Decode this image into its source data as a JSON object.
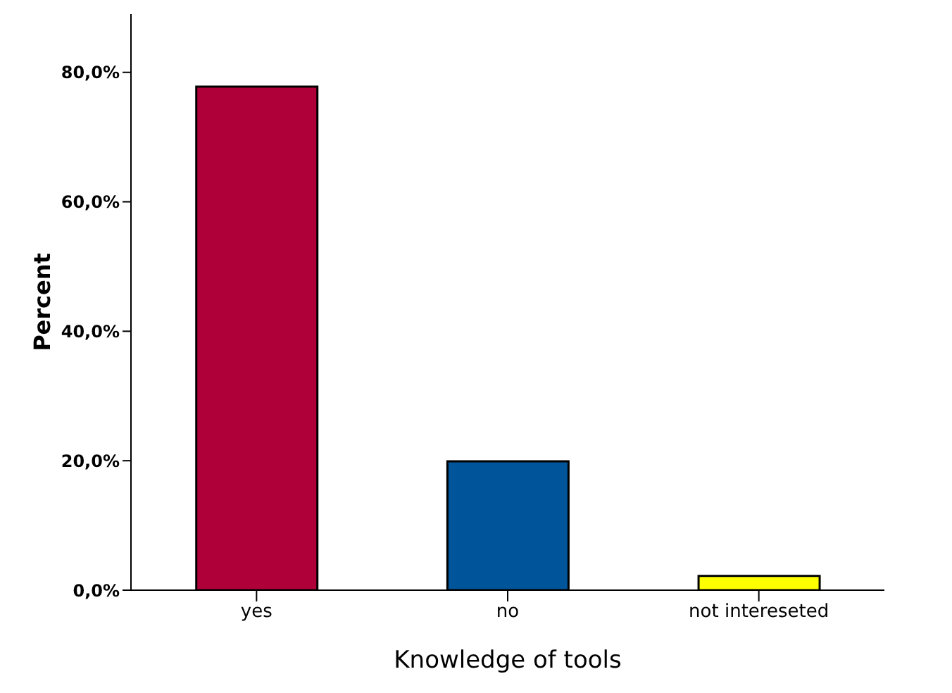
{
  "chart_data": {
    "type": "bar",
    "xlabel": "Knowledge of tools",
    "ylabel": "Percent",
    "categories": [
      "yes",
      "no",
      "not intereseted"
    ],
    "values": [
      77.8,
      19.9,
      2.2
    ],
    "colors": [
      "#b0003a",
      "#00559a",
      "#ffff00"
    ],
    "ylim": [
      0,
      89
    ],
    "yticks": [
      {
        "value": 0,
        "label": "0,0%"
      },
      {
        "value": 20,
        "label": "20,0%"
      },
      {
        "value": 40,
        "label": "40,0%"
      },
      {
        "value": 60,
        "label": "60,0%"
      },
      {
        "value": 80,
        "label": "80,0%"
      }
    ],
    "grid": false,
    "legend": false
  }
}
